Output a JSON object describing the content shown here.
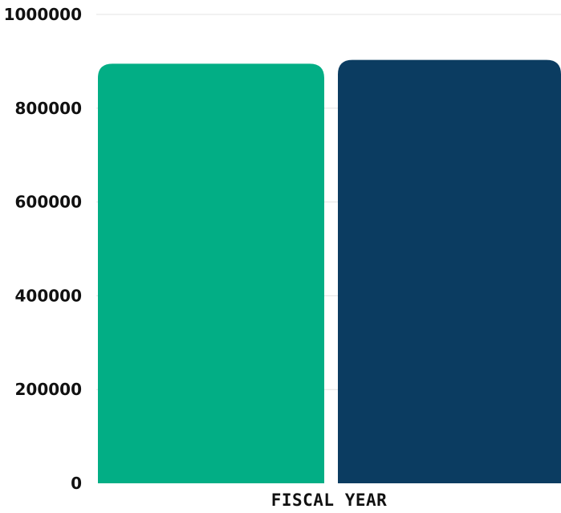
{
  "chart_data": {
    "type": "bar",
    "title": "",
    "xlabel": "FISCAL YEAR",
    "ylabel": "",
    "ylim": [
      0,
      1000000
    ],
    "yticks": [
      0,
      200000,
      400000,
      600000,
      800000,
      1000000
    ],
    "grid": true,
    "legend": "none",
    "series": [
      {
        "values": [
          895000
        ],
        "color": "#02ae85"
      },
      {
        "values": [
          903000
        ],
        "color": "#0b3c61"
      }
    ]
  }
}
